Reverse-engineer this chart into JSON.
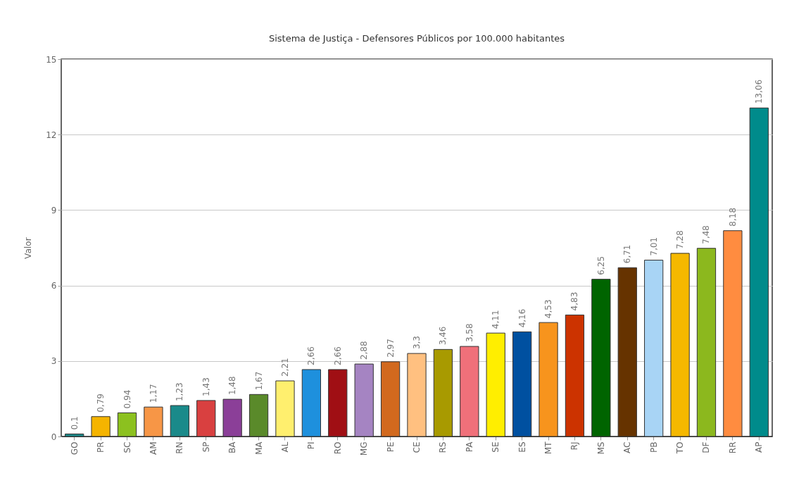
{
  "chart_data": {
    "type": "bar",
    "title": "Sistema de Justiça - Defensores Públicos por 100.000 habitantes",
    "ylabel": "Valor",
    "categories": [
      "GO",
      "PR",
      "SC",
      "AM",
      "RN",
      "SP",
      "BA",
      "MA",
      "AL",
      "PI",
      "RO",
      "MG",
      "PE",
      "CE",
      "RS",
      "PA",
      "SE",
      "ES",
      "MT",
      "RJ",
      "MS",
      "AC",
      "PB",
      "TO",
      "DF",
      "RR",
      "AP"
    ],
    "values": [
      0.1,
      0.79,
      0.94,
      1.17,
      1.23,
      1.43,
      1.48,
      1.67,
      2.21,
      2.66,
      2.66,
      2.88,
      2.97,
      3.3,
      3.46,
      3.58,
      4.11,
      4.16,
      4.53,
      4.83,
      6.25,
      6.71,
      7.01,
      7.28,
      7.48,
      8.18,
      13.06
    ],
    "value_labels": [
      "0,1",
      "0,79",
      "0,94",
      "1,17",
      "1,23",
      "1,43",
      "1,48",
      "1,67",
      "2,21",
      "2,66",
      "2,66",
      "2,88",
      "2,97",
      "3,3",
      "3,46",
      "3,58",
      "4,11",
      "4,16",
      "4,53",
      "4,83",
      "6,25",
      "6,71",
      "7,01",
      "7,28",
      "7,48",
      "8,18",
      "13,06"
    ],
    "colors": [
      "#1a8a8a",
      "#f5b400",
      "#8cc11f",
      "#f79646",
      "#1a8a8a",
      "#d94040",
      "#8b3f98",
      "#5a8a2a",
      "#ffef6e",
      "#1e90dd",
      "#a00f14",
      "#a584c2",
      "#d2691e",
      "#ffc080",
      "#a89a00",
      "#f0707a",
      "#ffee00",
      "#0050a0",
      "#f7941d",
      "#cc3300",
      "#006400",
      "#663300",
      "#a8d4f5",
      "#f5b800",
      "#8cb81e",
      "#ff8c40",
      "#008b8b"
    ],
    "ylim": [
      0,
      15
    ],
    "yticks": [
      0,
      3,
      6,
      9,
      12,
      15
    ],
    "grid": "y"
  }
}
